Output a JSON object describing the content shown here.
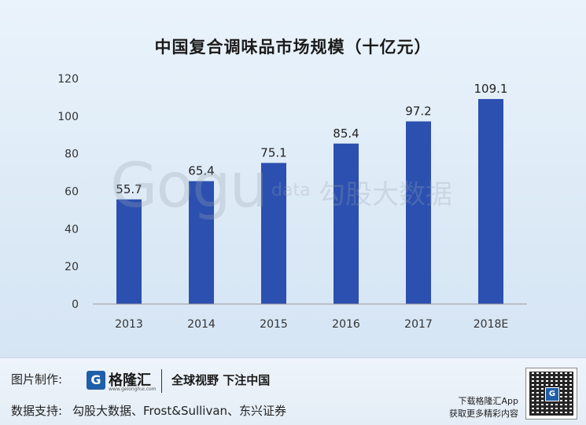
{
  "chart_data": {
    "type": "bar",
    "title": "中国复合调味品市场规模（十亿元）",
    "categories": [
      "2013",
      "2014",
      "2015",
      "2016",
      "2017",
      "2018E"
    ],
    "values": [
      55.7,
      65.4,
      75.1,
      85.4,
      97.2,
      109.1
    ],
    "value_labels": [
      "55.7",
      "65.4",
      "75.1",
      "85.4",
      "97.2",
      "109.1"
    ],
    "ylim": [
      0,
      120
    ],
    "yticks": [
      0,
      20,
      40,
      60,
      80,
      100,
      120
    ],
    "ytick_labels": [
      "0",
      "20",
      "40",
      "60",
      "80",
      "100",
      "120"
    ],
    "xlabel": "",
    "ylabel": "",
    "grid": false,
    "bar_color": "#2b50b0"
  },
  "watermark": {
    "word": "Gogu",
    "small": "data",
    "cn": "勾股大数据"
  },
  "footer": {
    "made_by_label": "图片制作:",
    "logo_icon": "G",
    "logo_name": "格隆汇",
    "logo_url": "www.gelonghui.com",
    "slogan": "全球视野 下注中国",
    "source_label": "数据支持:",
    "source_text": "勾股大数据、Frost&Sullivan、东兴证券",
    "download_line1": "下载格隆汇App",
    "download_line2": "获取更多精彩内容",
    "qr_logo": "G"
  }
}
